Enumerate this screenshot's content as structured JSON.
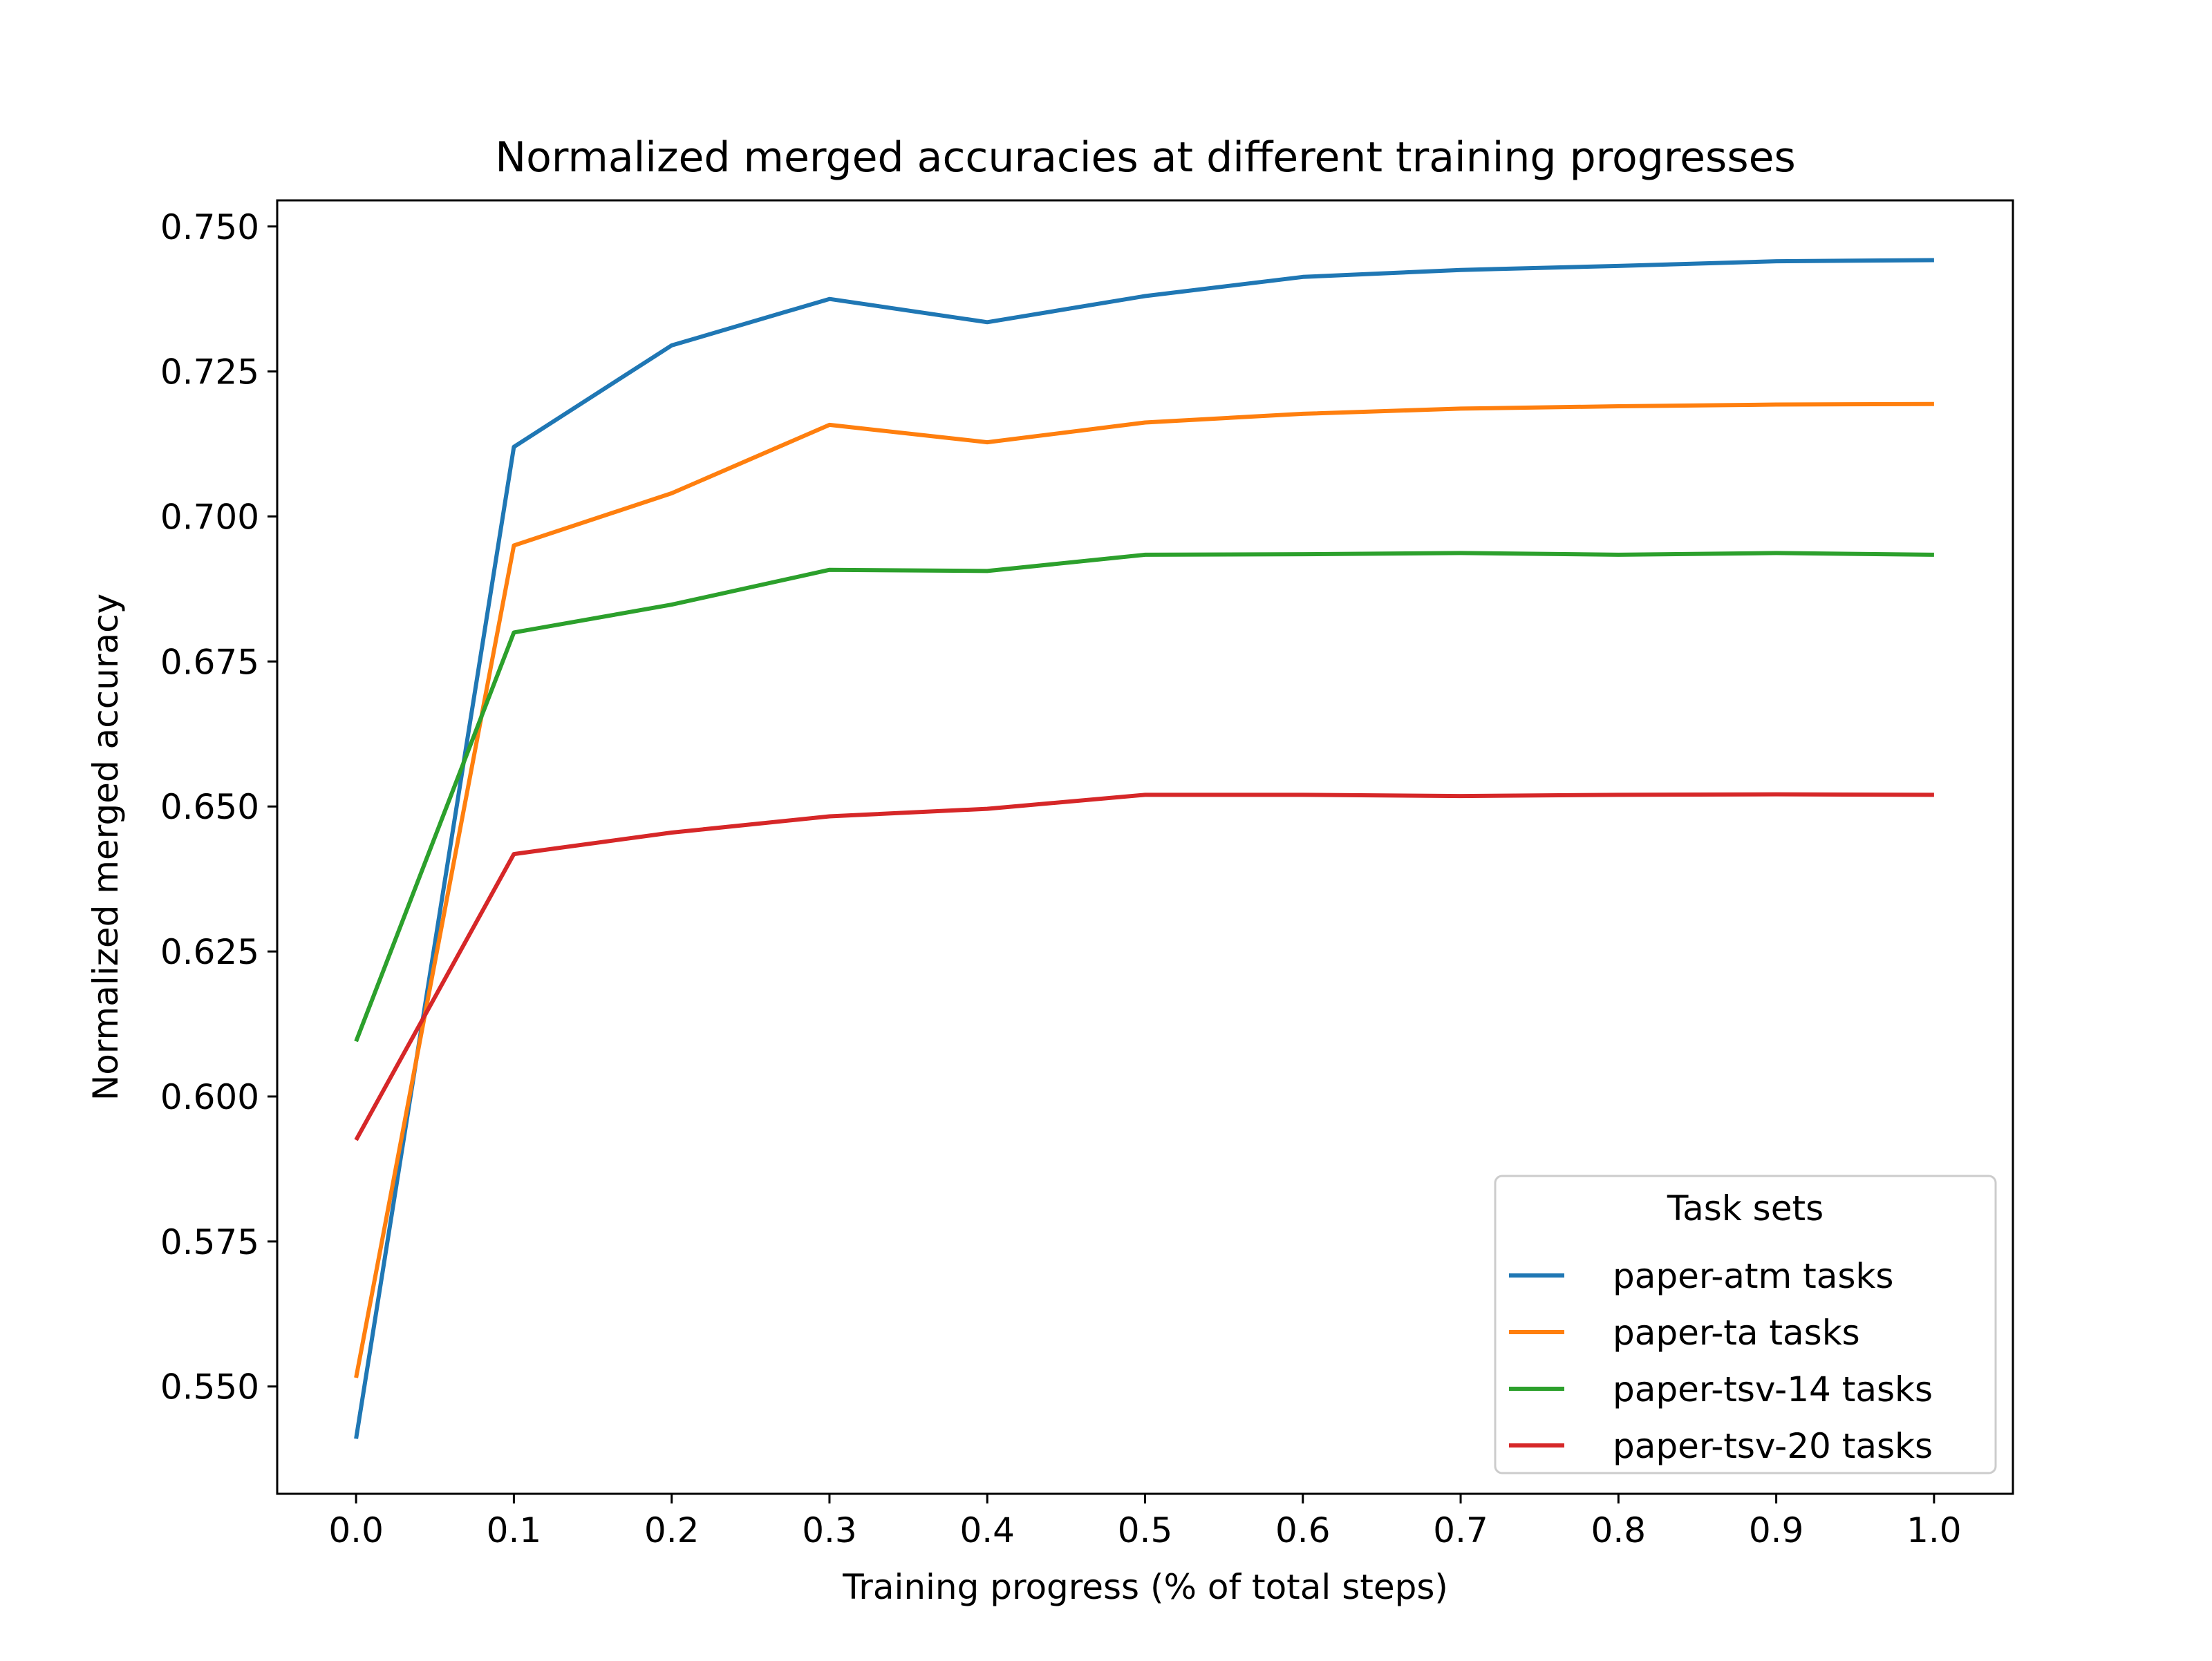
{
  "chart_data": {
    "type": "line",
    "title": "Normalized merged accuracies at different training progresses",
    "xlabel": "Training progress (% of total steps)",
    "ylabel": "Normalized merged accuracy",
    "x": [
      0.0,
      0.1,
      0.2,
      0.3,
      0.4,
      0.5,
      0.6,
      0.7,
      0.8,
      0.9,
      1.0
    ],
    "xlim": [
      -0.05,
      1.05
    ],
    "ylim": [
      0.5315,
      0.7545
    ],
    "xticks": [
      0.0,
      0.1,
      0.2,
      0.3,
      0.4,
      0.5,
      0.6,
      0.7,
      0.8,
      0.9,
      1.0
    ],
    "xtick_labels": [
      "0.0",
      "0.1",
      "0.2",
      "0.3",
      "0.4",
      "0.5",
      "0.6",
      "0.7",
      "0.8",
      "0.9",
      "1.0"
    ],
    "yticks": [
      0.55,
      0.575,
      0.6,
      0.625,
      0.65,
      0.675,
      0.7,
      0.725,
      0.75
    ],
    "ytick_labels": [
      "0.550",
      "0.575",
      "0.600",
      "0.625",
      "0.650",
      "0.675",
      "0.700",
      "0.725",
      "0.750"
    ],
    "grid": false,
    "legend": {
      "title": "Task sets",
      "position": "lower-right"
    },
    "series": [
      {
        "name": "paper-atm tasks",
        "color": "#1f77b4",
        "values": [
          0.541,
          0.712,
          0.7295,
          0.7375,
          0.7335,
          0.738,
          0.7413,
          0.7425,
          0.7432,
          0.744,
          0.7442
        ]
      },
      {
        "name": "paper-ta tasks",
        "color": "#ff7f0e",
        "values": [
          0.5515,
          0.695,
          0.704,
          0.7158,
          0.7128,
          0.7162,
          0.7177,
          0.7186,
          0.719,
          0.7193,
          0.7194
        ]
      },
      {
        "name": "paper-tsv-14 tasks",
        "color": "#2ca02c",
        "values": [
          0.6095,
          0.68,
          0.6848,
          0.6908,
          0.6906,
          0.6934,
          0.6935,
          0.6937,
          0.6934,
          0.6937,
          0.6934
        ]
      },
      {
        "name": "paper-tsv-20 tasks",
        "color": "#d62728",
        "values": [
          0.5925,
          0.6418,
          0.6455,
          0.6483,
          0.6496,
          0.652,
          0.652,
          0.6518,
          0.652,
          0.6521,
          0.652
        ]
      }
    ]
  }
}
